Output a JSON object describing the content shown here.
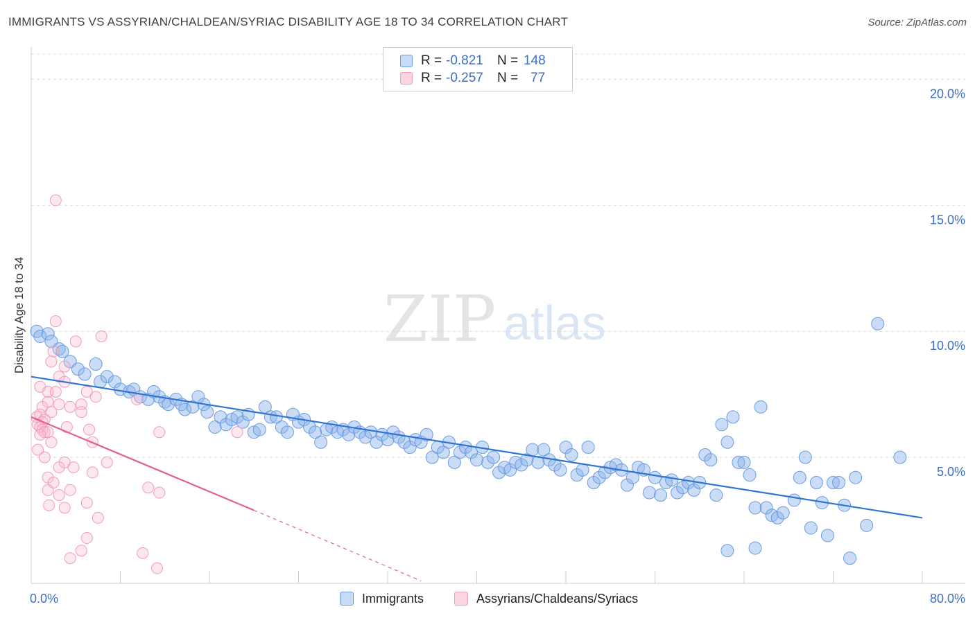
{
  "title": "IMMIGRANTS VS ASSYRIAN/CHALDEAN/SYRIAC DISABILITY AGE 18 TO 34 CORRELATION CHART",
  "source": "Source: ZipAtlas.com",
  "watermark": {
    "zip": "ZIP",
    "atlas": "atlas"
  },
  "colors": {
    "blue": "#6a9be0",
    "blue_line": "#2f74d0",
    "pink": "#f29bb8",
    "pink_line": "#e0608e",
    "tick_text": "#3a6fc4",
    "grid": "#d9d9d9"
  },
  "legend": {
    "r_label": "R =",
    "n_label": "N =",
    "rows": [
      {
        "r": "-0.821",
        "n": "148",
        "color": "#6a9be0"
      },
      {
        "r": "-0.257",
        "n": "77",
        "color": "#f29bb8"
      }
    ]
  },
  "bottom_legend": [
    {
      "label": "Immigrants",
      "color": "#6a9be0"
    },
    {
      "label": "Assyrians/Chaldeans/Syriacs",
      "color": "#f29bb8"
    }
  ],
  "chart_data": {
    "type": "scatter",
    "title": "IMMIGRANTS VS ASSYRIAN/CHALDEAN/SYRIAC DISABILITY AGE 18 TO 34 CORRELATION CHART",
    "xlabel": "",
    "ylabel": "Disability Age 18 to 34",
    "xlim": [
      0,
      80
    ],
    "ylim": [
      0,
      21
    ],
    "x_tick_labels": [
      "0.0%",
      "80.0%"
    ],
    "y_ticks": [
      5,
      10,
      15,
      20
    ],
    "y_tick_labels": [
      "5.0%",
      "10.0%",
      "15.0%",
      "20.0%"
    ],
    "grid": true,
    "legend_position": "top-center",
    "series": [
      {
        "name": "Immigrants",
        "color": "#6a9be0",
        "trend": {
          "x": [
            0,
            80
          ],
          "y": [
            8.2,
            2.6
          ]
        },
        "points": [
          [
            0.5,
            10.0
          ],
          [
            0.8,
            9.8
          ],
          [
            1.5,
            9.9
          ],
          [
            1.8,
            9.6
          ],
          [
            2.5,
            9.3
          ],
          [
            2.8,
            9.2
          ],
          [
            3.5,
            8.8
          ],
          [
            4.2,
            8.5
          ],
          [
            4.8,
            8.3
          ],
          [
            5.8,
            8.7
          ],
          [
            6.2,
            8.0
          ],
          [
            6.8,
            8.2
          ],
          [
            7.5,
            8.0
          ],
          [
            8.0,
            7.7
          ],
          [
            8.8,
            7.6
          ],
          [
            9.2,
            7.7
          ],
          [
            9.8,
            7.4
          ],
          [
            10.5,
            7.3
          ],
          [
            11.0,
            7.6
          ],
          [
            11.5,
            7.4
          ],
          [
            12.0,
            7.2
          ],
          [
            12.3,
            7.1
          ],
          [
            13.0,
            7.3
          ],
          [
            13.5,
            7.1
          ],
          [
            13.8,
            6.9
          ],
          [
            14.5,
            7.0
          ],
          [
            15.0,
            7.4
          ],
          [
            15.5,
            7.1
          ],
          [
            15.8,
            6.8
          ],
          [
            16.5,
            6.2
          ],
          [
            17.0,
            6.6
          ],
          [
            17.5,
            6.3
          ],
          [
            18.0,
            6.5
          ],
          [
            18.5,
            6.6
          ],
          [
            19.0,
            6.4
          ],
          [
            19.5,
            6.7
          ],
          [
            20.0,
            6.0
          ],
          [
            20.5,
            6.1
          ],
          [
            21.0,
            7.0
          ],
          [
            21.5,
            6.6
          ],
          [
            22.0,
            6.6
          ],
          [
            22.5,
            6.2
          ],
          [
            23.0,
            6.0
          ],
          [
            23.5,
            6.7
          ],
          [
            24.0,
            6.4
          ],
          [
            24.5,
            6.5
          ],
          [
            25.0,
            6.2
          ],
          [
            25.5,
            6.0
          ],
          [
            26.0,
            5.6
          ],
          [
            26.5,
            6.1
          ],
          [
            27.0,
            6.2
          ],
          [
            27.5,
            6.0
          ],
          [
            28.0,
            6.1
          ],
          [
            28.5,
            5.9
          ],
          [
            29.0,
            6.2
          ],
          [
            29.5,
            6.0
          ],
          [
            30.0,
            5.8
          ],
          [
            30.5,
            6.0
          ],
          [
            31.0,
            5.6
          ],
          [
            31.5,
            5.9
          ],
          [
            32.0,
            5.7
          ],
          [
            32.5,
            6.0
          ],
          [
            33.0,
            5.8
          ],
          [
            33.5,
            5.6
          ],
          [
            34.0,
            5.4
          ],
          [
            34.5,
            5.7
          ],
          [
            35.0,
            5.6
          ],
          [
            35.5,
            5.9
          ],
          [
            36.0,
            5.0
          ],
          [
            36.5,
            5.4
          ],
          [
            37.0,
            5.2
          ],
          [
            37.5,
            5.6
          ],
          [
            38.0,
            4.8
          ],
          [
            38.5,
            5.2
          ],
          [
            39.0,
            5.4
          ],
          [
            39.5,
            5.2
          ],
          [
            40.0,
            4.9
          ],
          [
            40.5,
            5.4
          ],
          [
            41.0,
            4.8
          ],
          [
            41.5,
            5.0
          ],
          [
            42.0,
            4.4
          ],
          [
            42.5,
            4.6
          ],
          [
            43.0,
            4.5
          ],
          [
            43.5,
            4.8
          ],
          [
            44.0,
            4.7
          ],
          [
            44.5,
            4.9
          ],
          [
            45.0,
            5.3
          ],
          [
            45.5,
            4.8
          ],
          [
            46.0,
            5.3
          ],
          [
            46.5,
            4.9
          ],
          [
            47.0,
            4.7
          ],
          [
            47.5,
            4.5
          ],
          [
            48.0,
            5.4
          ],
          [
            48.5,
            5.1
          ],
          [
            49.0,
            4.3
          ],
          [
            49.5,
            4.5
          ],
          [
            50.0,
            5.4
          ],
          [
            50.5,
            4.0
          ],
          [
            51.0,
            4.2
          ],
          [
            51.5,
            4.4
          ],
          [
            52.0,
            4.6
          ],
          [
            52.5,
            4.7
          ],
          [
            53.0,
            4.5
          ],
          [
            53.5,
            3.9
          ],
          [
            54.0,
            4.2
          ],
          [
            54.5,
            4.6
          ],
          [
            55.0,
            4.5
          ],
          [
            55.5,
            3.6
          ],
          [
            56.0,
            4.2
          ],
          [
            56.5,
            3.5
          ],
          [
            57.0,
            4.0
          ],
          [
            57.5,
            4.1
          ],
          [
            58.0,
            3.6
          ],
          [
            58.5,
            3.8
          ],
          [
            59.0,
            4.0
          ],
          [
            59.5,
            3.7
          ],
          [
            60.0,
            4.0
          ],
          [
            60.5,
            5.1
          ],
          [
            61.0,
            4.9
          ],
          [
            61.5,
            3.5
          ],
          [
            62.0,
            6.3
          ],
          [
            62.5,
            5.6
          ],
          [
            63.0,
            6.6
          ],
          [
            63.5,
            4.8
          ],
          [
            64.0,
            4.8
          ],
          [
            64.5,
            4.3
          ],
          [
            65.0,
            3.0
          ],
          [
            65.5,
            7.0
          ],
          [
            66.0,
            3.0
          ],
          [
            66.5,
            2.7
          ],
          [
            67.0,
            2.6
          ],
          [
            67.5,
            2.8
          ],
          [
            68.5,
            3.3
          ],
          [
            69.0,
            4.2
          ],
          [
            69.5,
            5.0
          ],
          [
            70.0,
            2.2
          ],
          [
            70.5,
            4.0
          ],
          [
            71.0,
            3.2
          ],
          [
            71.5,
            1.9
          ],
          [
            72.0,
            4.0
          ],
          [
            72.5,
            4.0
          ],
          [
            73.0,
            3.1
          ],
          [
            73.5,
            1.0
          ],
          [
            74.0,
            4.2
          ],
          [
            75.0,
            2.3
          ],
          [
            76.0,
            10.3
          ],
          [
            78.0,
            5.0
          ],
          [
            62.5,
            1.3
          ],
          [
            65.0,
            1.4
          ]
        ]
      },
      {
        "name": "Assyrians/Chaldeans/Syriacs",
        "color": "#f29bb8",
        "trend": {
          "x": [
            0,
            20
          ],
          "y": [
            6.6,
            2.9
          ]
        },
        "trend_extension": {
          "x": [
            20,
            35
          ],
          "y": [
            2.9,
            0.1
          ]
        },
        "points": [
          [
            2.2,
            15.2
          ],
          [
            2.2,
            10.4
          ],
          [
            6.3,
            9.8
          ],
          [
            4.0,
            9.6
          ],
          [
            2.0,
            9.2
          ],
          [
            1.8,
            8.8
          ],
          [
            3.0,
            8.6
          ],
          [
            2.5,
            8.2
          ],
          [
            3.0,
            8.0
          ],
          [
            0.8,
            7.8
          ],
          [
            1.5,
            7.6
          ],
          [
            2.2,
            7.6
          ],
          [
            5.0,
            7.6
          ],
          [
            5.8,
            7.4
          ],
          [
            9.5,
            7.3
          ],
          [
            1.5,
            7.2
          ],
          [
            2.5,
            7.1
          ],
          [
            4.5,
            7.1
          ],
          [
            1.0,
            7.0
          ],
          [
            3.5,
            7.0
          ],
          [
            4.5,
            6.8
          ],
          [
            1.8,
            6.8
          ],
          [
            0.5,
            6.6
          ],
          [
            0.8,
            6.7
          ],
          [
            1.2,
            6.5
          ],
          [
            1.0,
            6.4
          ],
          [
            0.6,
            6.3
          ],
          [
            0.8,
            6.2
          ],
          [
            1.0,
            6.1
          ],
          [
            1.2,
            6.0
          ],
          [
            1.5,
            6.0
          ],
          [
            0.8,
            5.9
          ],
          [
            3.2,
            6.2
          ],
          [
            5.2,
            6.1
          ],
          [
            11.5,
            6.0
          ],
          [
            18.5,
            6.0
          ],
          [
            1.8,
            5.6
          ],
          [
            5.5,
            5.6
          ],
          [
            0.6,
            5.3
          ],
          [
            1.2,
            5.0
          ],
          [
            3.0,
            4.8
          ],
          [
            6.8,
            4.8
          ],
          [
            2.5,
            4.6
          ],
          [
            3.8,
            4.6
          ],
          [
            5.5,
            4.4
          ],
          [
            1.5,
            4.2
          ],
          [
            2.0,
            4.0
          ],
          [
            1.5,
            3.7
          ],
          [
            3.5,
            3.7
          ],
          [
            10.5,
            3.8
          ],
          [
            11.5,
            3.6
          ],
          [
            2.5,
            3.5
          ],
          [
            1.6,
            3.1
          ],
          [
            3.0,
            3.0
          ],
          [
            5.0,
            3.2
          ],
          [
            6.0,
            2.6
          ],
          [
            5.0,
            1.8
          ],
          [
            4.5,
            1.3
          ],
          [
            3.5,
            1.0
          ],
          [
            10.0,
            1.2
          ],
          [
            11.3,
            0.6
          ]
        ]
      }
    ]
  }
}
